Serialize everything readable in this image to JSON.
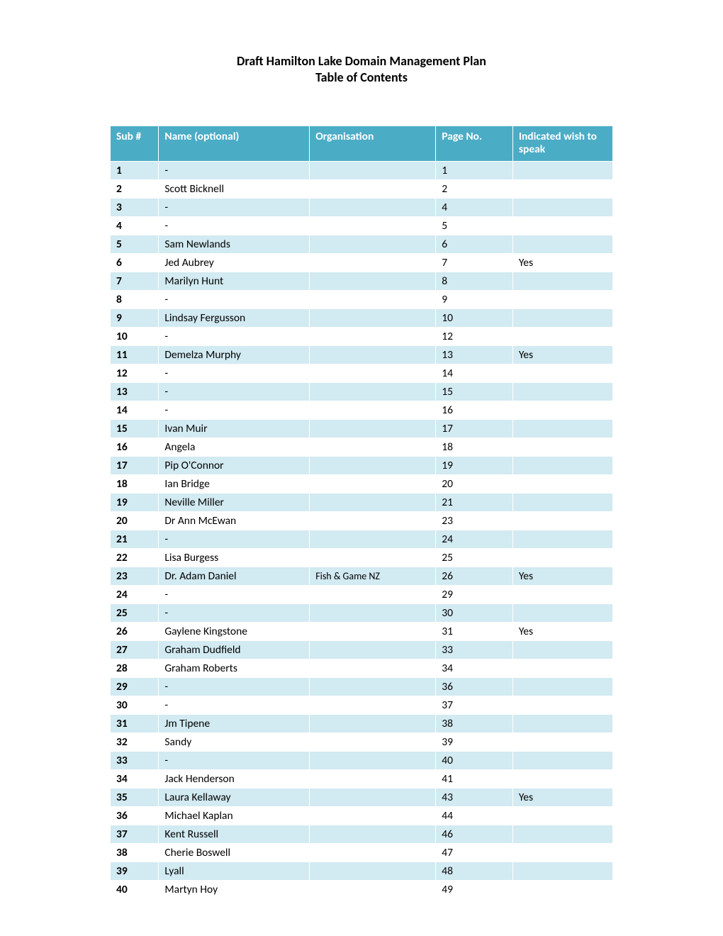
{
  "title_line1": "Draft Hamilton Lake Domain Management Plan",
  "title_line2": "Table of Contents",
  "columns": {
    "sub": "Sub #",
    "name": "Name (optional)",
    "org": "Organisation",
    "page": "Page No.",
    "speak": "Indicated wish to speak"
  },
  "colors": {
    "header_bg": "#4bacc6",
    "header_fg": "#ffffff",
    "row_odd_bg": "#d2eaf1",
    "row_even_bg": "#ffffff",
    "border": "#ffffff",
    "text": "#000000"
  },
  "rows": [
    {
      "sub": "1",
      "name": "-",
      "org": "",
      "page": "1",
      "speak": ""
    },
    {
      "sub": "2",
      "name": "Scott Bicknell",
      "org": "",
      "page": "2",
      "speak": ""
    },
    {
      "sub": "3",
      "name": "-",
      "org": "",
      "page": "4",
      "speak": ""
    },
    {
      "sub": "4",
      "name": "-",
      "org": "",
      "page": "5",
      "speak": ""
    },
    {
      "sub": "5",
      "name": "Sam Newlands",
      "org": "",
      "page": "6",
      "speak": ""
    },
    {
      "sub": "6",
      "name": "Jed Aubrey",
      "org": "",
      "page": "7",
      "speak": "Yes"
    },
    {
      "sub": "7",
      "name": "Marilyn Hunt",
      "org": "",
      "page": "8",
      "speak": ""
    },
    {
      "sub": "8",
      "name": "-",
      "org": "",
      "page": "9",
      "speak": ""
    },
    {
      "sub": "9",
      "name": "Lindsay Fergusson",
      "org": "",
      "page": "10",
      "speak": ""
    },
    {
      "sub": "10",
      "name": "-",
      "org": "",
      "page": "12",
      "speak": ""
    },
    {
      "sub": "11",
      "name": "Demelza Murphy",
      "org": "",
      "page": "13",
      "speak": "Yes"
    },
    {
      "sub": "12",
      "name": "-",
      "org": "",
      "page": "14",
      "speak": ""
    },
    {
      "sub": "13",
      "name": "-",
      "org": "",
      "page": "15",
      "speak": ""
    },
    {
      "sub": "14",
      "name": "-",
      "org": "",
      "page": "16",
      "speak": ""
    },
    {
      "sub": "15",
      "name": "Ivan Muir",
      "org": "",
      "page": "17",
      "speak": ""
    },
    {
      "sub": "16",
      "name": "Angela",
      "org": "",
      "page": "18",
      "speak": ""
    },
    {
      "sub": "17",
      "name": "Pip O'Connor",
      "org": "",
      "page": "19",
      "speak": ""
    },
    {
      "sub": "18",
      "name": "Ian Bridge",
      "org": "",
      "page": "20",
      "speak": ""
    },
    {
      "sub": "19",
      "name": "Neville Miller",
      "org": "",
      "page": "21",
      "speak": ""
    },
    {
      "sub": "20",
      "name": "Dr Ann McEwan",
      "org": "",
      "page": "23",
      "speak": ""
    },
    {
      "sub": "21",
      "name": "-",
      "org": "",
      "page": "24",
      "speak": ""
    },
    {
      "sub": "22",
      "name": "Lisa Burgess",
      "org": "",
      "page": "25",
      "speak": ""
    },
    {
      "sub": "23",
      "name": "Dr. Adam Daniel",
      "org": "Fish & Game NZ",
      "page": "26",
      "speak": "Yes"
    },
    {
      "sub": "24",
      "name": "-",
      "org": "",
      "page": "29",
      "speak": ""
    },
    {
      "sub": "25",
      "name": "-",
      "org": "",
      "page": "30",
      "speak": ""
    },
    {
      "sub": "26",
      "name": "Gaylene Kingstone",
      "org": "",
      "page": "31",
      "speak": "Yes"
    },
    {
      "sub": "27",
      "name": "Graham Dudfield",
      "org": "",
      "page": "33",
      "speak": ""
    },
    {
      "sub": "28",
      "name": "Graham Roberts",
      "org": "",
      "page": "34",
      "speak": ""
    },
    {
      "sub": "29",
      "name": "-",
      "org": "",
      "page": "36",
      "speak": ""
    },
    {
      "sub": "30",
      "name": "-",
      "org": "",
      "page": "37",
      "speak": ""
    },
    {
      "sub": "31",
      "name": "Jm Tipene",
      "org": "",
      "page": "38",
      "speak": ""
    },
    {
      "sub": "32",
      "name": "Sandy",
      "org": "",
      "page": "39",
      "speak": ""
    },
    {
      "sub": "33",
      "name": "-",
      "org": "",
      "page": "40",
      "speak": ""
    },
    {
      "sub": "34",
      "name": "Jack Henderson",
      "org": "",
      "page": "41",
      "speak": ""
    },
    {
      "sub": "35",
      "name": "Laura Kellaway",
      "org": "",
      "page": "43",
      "speak": "Yes"
    },
    {
      "sub": "36",
      "name": "Michael Kaplan",
      "org": "",
      "page": "44",
      "speak": ""
    },
    {
      "sub": "37",
      "name": "Kent Russell",
      "org": "",
      "page": "46",
      "speak": ""
    },
    {
      "sub": "38",
      "name": "Cherie Boswell",
      "org": "",
      "page": "47",
      "speak": ""
    },
    {
      "sub": "39",
      "name": "Lyall",
      "org": "",
      "page": "48",
      "speak": ""
    },
    {
      "sub": "40",
      "name": "Martyn Hoy",
      "org": "",
      "page": "49",
      "speak": ""
    }
  ]
}
